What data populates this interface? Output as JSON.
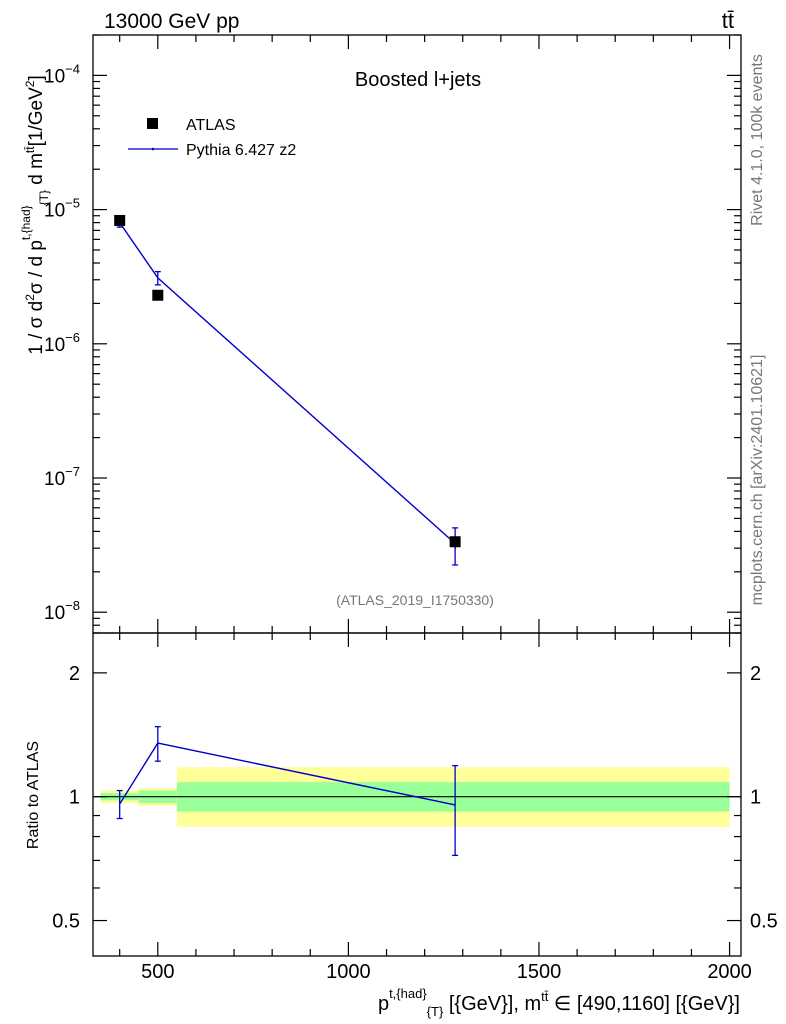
{
  "header": {
    "energy_label": "13000 GeV pp",
    "process_label": "tt̄"
  },
  "side_labels": {
    "rivet": "Rivet 4.1.0,  100k events",
    "mcplots": "mcplots.cern.ch [arXiv:2401.10621]"
  },
  "colors": {
    "mc": "#0000cc",
    "data": "#000000",
    "band_inner": "#99ff99",
    "band_outer": "#ffff99"
  },
  "chart_data": [
    {
      "type": "scatter",
      "panel": "main",
      "title": "Boosted l+jets",
      "analysis_label": "(ATLAS_2019_I1750330)",
      "ylabel": "1 / σ d²σ / d p^{t,{had}}_{T} d m^{tt̄} [1/GeV²]",
      "yscale": "log",
      "xlim": [
        330,
        2030
      ],
      "ylim": [
        7e-09,
        0.0002
      ],
      "y_ticks": [
        {
          "value": 0.0001,
          "base": "10",
          "exp": "−4"
        },
        {
          "value": 1e-05,
          "base": "10",
          "exp": "−5"
        },
        {
          "value": 1e-06,
          "base": "10",
          "exp": "−6"
        },
        {
          "value": 1e-07,
          "base": "10",
          "exp": "−7"
        },
        {
          "value": 1e-08,
          "base": "10",
          "exp": "−8"
        }
      ],
      "legend": [
        {
          "label": "ATLAS",
          "style": "marker"
        },
        {
          "label": "Pythia 6.427 z2",
          "style": "line"
        }
      ],
      "series": [
        {
          "name": "ATLAS",
          "x": [
            400,
            500,
            1280
          ],
          "y": [
            8.3e-06,
            2.3e-06,
            3.35e-08
          ],
          "yerr_lo": [
            5e-07,
            1.5e-07,
            3.5e-09
          ],
          "yerr_hi": [
            5e-07,
            1.5e-07,
            3.5e-09
          ]
        },
        {
          "name": "Pythia 6.427 z2",
          "x": [
            400,
            500,
            1280
          ],
          "y": [
            8e-06,
            3.1e-06,
            3.25e-08
          ],
          "yerr_lo": [
            6e-07,
            3.5e-07,
            1e-08
          ],
          "yerr_hi": [
            6e-07,
            3.5e-07,
            1e-08
          ]
        }
      ]
    },
    {
      "type": "line",
      "panel": "ratio",
      "ylabel": "Ratio to ATLAS",
      "xlabel": "p^{t,{had}}_{T} [{GeV}], m^{tt̄} ∈ [490,1160] [{GeV}]",
      "xlim": [
        330,
        2030
      ],
      "ylim": [
        0.41,
        2.5
      ],
      "x_ticks": [
        500,
        1000,
        1500,
        2000
      ],
      "y_ticks": [
        0.5,
        1,
        2
      ],
      "bands": [
        {
          "x_from": 350,
          "x_to": 450,
          "inner": [
            0.98,
            1.02
          ],
          "outer": [
            0.965,
            1.035
          ]
        },
        {
          "x_from": 450,
          "x_to": 550,
          "inner": [
            0.965,
            1.035
          ],
          "outer": [
            0.95,
            1.05
          ]
        },
        {
          "x_from": 550,
          "x_to": 2000,
          "inner": [
            0.92,
            1.085
          ],
          "outer": [
            0.845,
            1.18
          ]
        }
      ],
      "series": [
        {
          "name": "Pythia 6.427 z2",
          "x": [
            400,
            500,
            1280
          ],
          "y": [
            0.96,
            1.35,
            0.955
          ],
          "yerr_lo": [
            0.075,
            0.13,
            0.235
          ],
          "yerr_hi": [
            0.075,
            0.13,
            0.235
          ]
        }
      ]
    }
  ]
}
